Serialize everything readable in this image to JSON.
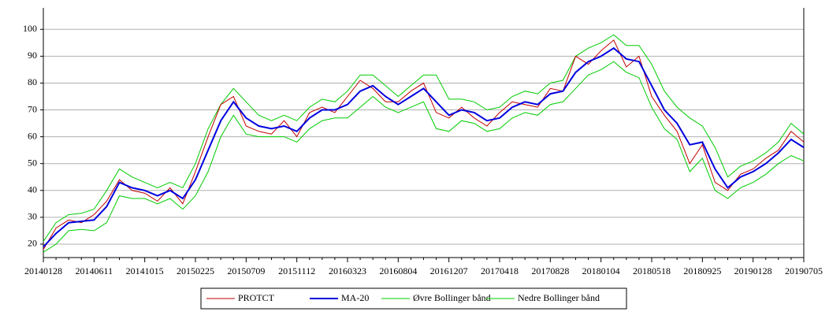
{
  "chart_data": {
    "type": "line",
    "categories": [
      "20140128",
      null,
      null,
      null,
      "20140611",
      null,
      null,
      null,
      "20141015",
      null,
      null,
      null,
      "20150225",
      null,
      null,
      null,
      "20150709",
      null,
      null,
      null,
      "20151112",
      null,
      null,
      null,
      "20160323",
      null,
      null,
      null,
      "20160804",
      null,
      null,
      null,
      "20161207",
      null,
      null,
      null,
      "20170418",
      null,
      null,
      null,
      "20170828",
      null,
      null,
      null,
      "20180104",
      null,
      null,
      null,
      "20180518",
      null,
      null,
      null,
      "20180925",
      null,
      null,
      null,
      "20190128",
      null,
      null,
      null,
      "20190705"
    ],
    "series": [
      {
        "name": "PROTCT",
        "color": "#c00000",
        "values": [
          18,
          26,
          29,
          28,
          31,
          36,
          44,
          40,
          39,
          36,
          41,
          35,
          47,
          60,
          72,
          75,
          64,
          62,
          61,
          66,
          60,
          69,
          71,
          69,
          75,
          81,
          78,
          73,
          73,
          77,
          80,
          69,
          67,
          71,
          67,
          64,
          69,
          73,
          72,
          71,
          78,
          77,
          90,
          87,
          92,
          96,
          86,
          90,
          75,
          68,
          62,
          50,
          57,
          43,
          40,
          46,
          48,
          52,
          55,
          62,
          58
        ]
      },
      {
        "name": "MA-20",
        "color": "#0000e0",
        "values": [
          19,
          24,
          28,
          28.5,
          29,
          34,
          43,
          41,
          40,
          38,
          40,
          37,
          44,
          55,
          66,
          73,
          67,
          64,
          63,
          64,
          62,
          67,
          70,
          70,
          72,
          77,
          79,
          75,
          72,
          75,
          78,
          73,
          68,
          70,
          69,
          66,
          67,
          71,
          73,
          72,
          76,
          77,
          84,
          88,
          90,
          93,
          89,
          88,
          79,
          70,
          65,
          57,
          58,
          48,
          41,
          45,
          47,
          50,
          54,
          59,
          56
        ]
      },
      {
        "name": "Øvre Bollinger bånd",
        "color": "#00cc00",
        "values": [
          21,
          28,
          31,
          31.5,
          33,
          40,
          48,
          45,
          43,
          41,
          43,
          41,
          50,
          63,
          72,
          78,
          73,
          68,
          66,
          68,
          66,
          71,
          74,
          73,
          77,
          83,
          83,
          79,
          75,
          79,
          83,
          83,
          74,
          74,
          73,
          70,
          71,
          75,
          77,
          76,
          80,
          81,
          90,
          93,
          95,
          98,
          94,
          94,
          87,
          77,
          71,
          67,
          64,
          56,
          45,
          49,
          51,
          54,
          58,
          65,
          61
        ]
      },
      {
        "name": "Nedre Bollinger bånd",
        "color": "#00cc00",
        "values": [
          17,
          20,
          25,
          25.5,
          25,
          28,
          38,
          37,
          37,
          35,
          37,
          33,
          38,
          47,
          60,
          68,
          61,
          60,
          60,
          60,
          58,
          63,
          66,
          67,
          67,
          71,
          75,
          71,
          69,
          71,
          73,
          63,
          62,
          66,
          65,
          62,
          63,
          67,
          69,
          68,
          72,
          73,
          78,
          83,
          85,
          88,
          84,
          82,
          71,
          63,
          59,
          47,
          52,
          40,
          37,
          41,
          43,
          46,
          50,
          53,
          51
        ]
      }
    ],
    "ylim": [
      15,
      108
    ],
    "yticks": [
      20,
      30,
      40,
      50,
      60,
      70,
      80,
      90,
      100
    ],
    "grid": true
  }
}
